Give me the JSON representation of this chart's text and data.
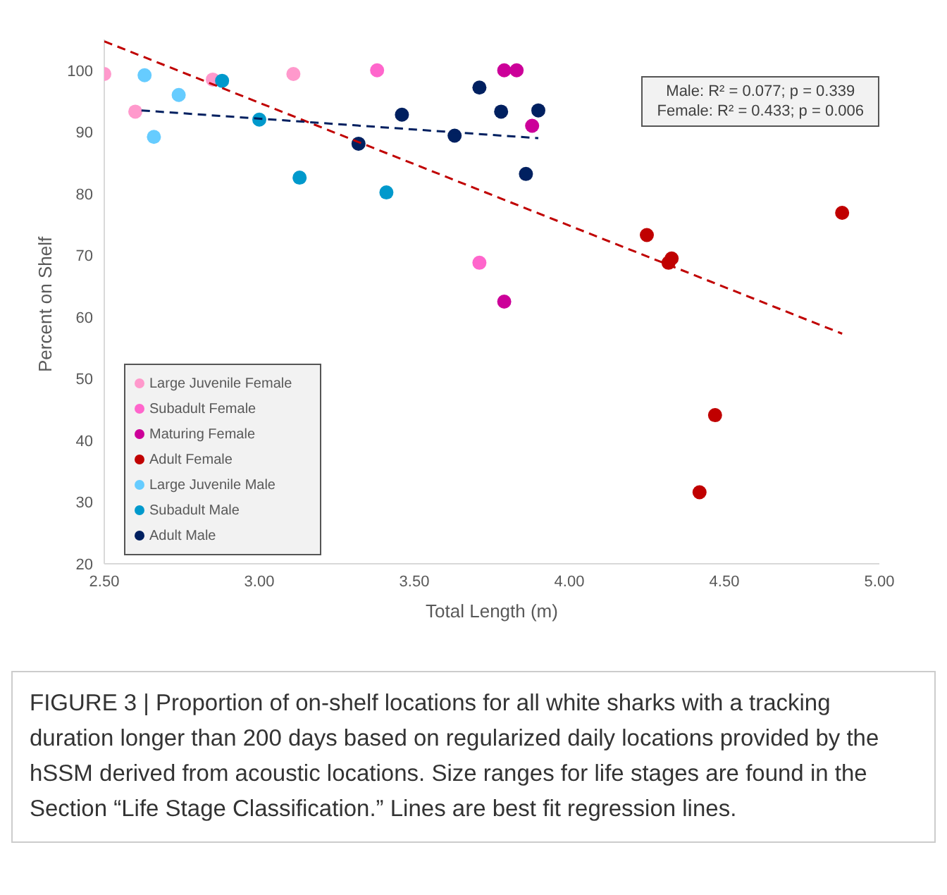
{
  "chart_data": {
    "type": "scatter",
    "xlabel": "Total Length (m)",
    "ylabel": "Percent on Shelf",
    "xlim": [
      2.5,
      5
    ],
    "xticks": [
      {
        "value": 2.5,
        "label": "2.50"
      },
      {
        "value": 3,
        "label": "3.00"
      },
      {
        "value": 3.5,
        "label": "3.50"
      },
      {
        "value": 4,
        "label": "4.00"
      },
      {
        "value": 4.5,
        "label": "4.50"
      },
      {
        "value": 5,
        "label": "5.00"
      }
    ],
    "ylim": [
      20,
      105
    ],
    "yticks": [
      20,
      30,
      40,
      50,
      60,
      70,
      80,
      90,
      100
    ],
    "grid": false,
    "legend": "bottom left",
    "marker": "circle",
    "annotations": [
      "Male: R² = 0.077; p = 0.339",
      "Female: R² = 0.433; p = 0.006",
      "FIGURE 3 | Proportion of on-shelf locations for all white sharks with a tracking duration longer than 200 days based on regularized daily locations provided by the hSSM derived from acoustic locations. Size ranges for life stages are found in the Section “Life Stage Classification.” Lines are best fit regression lines."
    ],
    "series": [
      {
        "name": "Large Juvenile Female",
        "color": "#ff99cc",
        "x": [
          2.5,
          2.6,
          2.85,
          3.11
        ],
        "values": [
          99.4,
          93.3,
          98.5,
          99.4
        ]
      },
      {
        "name": "Subadult Female",
        "color": "#ff66cc",
        "x": [
          3.38,
          3.71
        ],
        "values": [
          100,
          68.8
        ]
      },
      {
        "name": "Maturing Female",
        "color": "#cc0099",
        "x": [
          3.79,
          3.83,
          3.88,
          3.79
        ],
        "values": [
          100,
          100,
          91,
          62.5
        ]
      },
      {
        "name": "Adult Female",
        "color": "#c00000",
        "x": [
          4.25,
          4.33,
          4.32,
          4.88,
          4.47,
          4.42
        ],
        "values": [
          73.3,
          69.5,
          68.8,
          76.9,
          44.1,
          31.6
        ]
      },
      {
        "name": "Large Juvenile Male",
        "color": "#66ccff",
        "x": [
          2.63,
          2.74,
          2.66
        ],
        "values": [
          99.2,
          96,
          89.2
        ]
      },
      {
        "name": "Subadult Male",
        "color": "#0099cc",
        "x": [
          2.88,
          3,
          3.13,
          3.41
        ],
        "values": [
          98.3,
          92,
          82.6,
          80.2
        ]
      },
      {
        "name": "Adult Male",
        "color": "#002060",
        "x": [
          3.32,
          3.46,
          3.63,
          3.71,
          3.78,
          3.86,
          3.9
        ],
        "values": [
          88.1,
          92.8,
          89.4,
          97.2,
          93.3,
          83.2,
          93.5
        ]
      },
      {
        "type": "line",
        "color": "#c00000",
        "x": [
          2.5,
          4.88
        ],
        "values": [
          104.7,
          57.3
        ],
        "line_style": "dashed",
        "marker": "none"
      },
      {
        "type": "line",
        "color": "#002060",
        "x": [
          2.62,
          3.9
        ],
        "values": [
          93.5,
          89
        ],
        "line_style": "dashed",
        "marker": "none"
      }
    ]
  }
}
